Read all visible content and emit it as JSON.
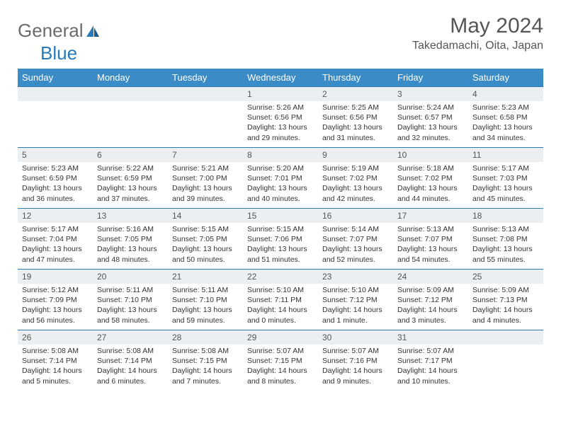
{
  "logo": {
    "text1": "General",
    "text2": "Blue"
  },
  "title": "May 2024",
  "location": "Takedamachi, Oita, Japan",
  "colors": {
    "header_bg": "#3b8bc6",
    "header_text": "#ffffff",
    "border": "#2a7ab8",
    "daynum_bg": "#eceff1",
    "body_text": "#333333",
    "title_text": "#555555",
    "logo_gray": "#6b6b6b",
    "logo_blue": "#2a7ab8"
  },
  "day_headers": [
    "Sunday",
    "Monday",
    "Tuesday",
    "Wednesday",
    "Thursday",
    "Friday",
    "Saturday"
  ],
  "weeks": [
    [
      {
        "n": "",
        "sunrise": "",
        "sunset": "",
        "daylight": ""
      },
      {
        "n": "",
        "sunrise": "",
        "sunset": "",
        "daylight": ""
      },
      {
        "n": "",
        "sunrise": "",
        "sunset": "",
        "daylight": ""
      },
      {
        "n": "1",
        "sunrise": "Sunrise: 5:26 AM",
        "sunset": "Sunset: 6:56 PM",
        "daylight": "Daylight: 13 hours and 29 minutes."
      },
      {
        "n": "2",
        "sunrise": "Sunrise: 5:25 AM",
        "sunset": "Sunset: 6:56 PM",
        "daylight": "Daylight: 13 hours and 31 minutes."
      },
      {
        "n": "3",
        "sunrise": "Sunrise: 5:24 AM",
        "sunset": "Sunset: 6:57 PM",
        "daylight": "Daylight: 13 hours and 32 minutes."
      },
      {
        "n": "4",
        "sunrise": "Sunrise: 5:23 AM",
        "sunset": "Sunset: 6:58 PM",
        "daylight": "Daylight: 13 hours and 34 minutes."
      }
    ],
    [
      {
        "n": "5",
        "sunrise": "Sunrise: 5:23 AM",
        "sunset": "Sunset: 6:59 PM",
        "daylight": "Daylight: 13 hours and 36 minutes."
      },
      {
        "n": "6",
        "sunrise": "Sunrise: 5:22 AM",
        "sunset": "Sunset: 6:59 PM",
        "daylight": "Daylight: 13 hours and 37 minutes."
      },
      {
        "n": "7",
        "sunrise": "Sunrise: 5:21 AM",
        "sunset": "Sunset: 7:00 PM",
        "daylight": "Daylight: 13 hours and 39 minutes."
      },
      {
        "n": "8",
        "sunrise": "Sunrise: 5:20 AM",
        "sunset": "Sunset: 7:01 PM",
        "daylight": "Daylight: 13 hours and 40 minutes."
      },
      {
        "n": "9",
        "sunrise": "Sunrise: 5:19 AM",
        "sunset": "Sunset: 7:02 PM",
        "daylight": "Daylight: 13 hours and 42 minutes."
      },
      {
        "n": "10",
        "sunrise": "Sunrise: 5:18 AM",
        "sunset": "Sunset: 7:02 PM",
        "daylight": "Daylight: 13 hours and 44 minutes."
      },
      {
        "n": "11",
        "sunrise": "Sunrise: 5:17 AM",
        "sunset": "Sunset: 7:03 PM",
        "daylight": "Daylight: 13 hours and 45 minutes."
      }
    ],
    [
      {
        "n": "12",
        "sunrise": "Sunrise: 5:17 AM",
        "sunset": "Sunset: 7:04 PM",
        "daylight": "Daylight: 13 hours and 47 minutes."
      },
      {
        "n": "13",
        "sunrise": "Sunrise: 5:16 AM",
        "sunset": "Sunset: 7:05 PM",
        "daylight": "Daylight: 13 hours and 48 minutes."
      },
      {
        "n": "14",
        "sunrise": "Sunrise: 5:15 AM",
        "sunset": "Sunset: 7:05 PM",
        "daylight": "Daylight: 13 hours and 50 minutes."
      },
      {
        "n": "15",
        "sunrise": "Sunrise: 5:15 AM",
        "sunset": "Sunset: 7:06 PM",
        "daylight": "Daylight: 13 hours and 51 minutes."
      },
      {
        "n": "16",
        "sunrise": "Sunrise: 5:14 AM",
        "sunset": "Sunset: 7:07 PM",
        "daylight": "Daylight: 13 hours and 52 minutes."
      },
      {
        "n": "17",
        "sunrise": "Sunrise: 5:13 AM",
        "sunset": "Sunset: 7:07 PM",
        "daylight": "Daylight: 13 hours and 54 minutes."
      },
      {
        "n": "18",
        "sunrise": "Sunrise: 5:13 AM",
        "sunset": "Sunset: 7:08 PM",
        "daylight": "Daylight: 13 hours and 55 minutes."
      }
    ],
    [
      {
        "n": "19",
        "sunrise": "Sunrise: 5:12 AM",
        "sunset": "Sunset: 7:09 PM",
        "daylight": "Daylight: 13 hours and 56 minutes."
      },
      {
        "n": "20",
        "sunrise": "Sunrise: 5:11 AM",
        "sunset": "Sunset: 7:10 PM",
        "daylight": "Daylight: 13 hours and 58 minutes."
      },
      {
        "n": "21",
        "sunrise": "Sunrise: 5:11 AM",
        "sunset": "Sunset: 7:10 PM",
        "daylight": "Daylight: 13 hours and 59 minutes."
      },
      {
        "n": "22",
        "sunrise": "Sunrise: 5:10 AM",
        "sunset": "Sunset: 7:11 PM",
        "daylight": "Daylight: 14 hours and 0 minutes."
      },
      {
        "n": "23",
        "sunrise": "Sunrise: 5:10 AM",
        "sunset": "Sunset: 7:12 PM",
        "daylight": "Daylight: 14 hours and 1 minute."
      },
      {
        "n": "24",
        "sunrise": "Sunrise: 5:09 AM",
        "sunset": "Sunset: 7:12 PM",
        "daylight": "Daylight: 14 hours and 3 minutes."
      },
      {
        "n": "25",
        "sunrise": "Sunrise: 5:09 AM",
        "sunset": "Sunset: 7:13 PM",
        "daylight": "Daylight: 14 hours and 4 minutes."
      }
    ],
    [
      {
        "n": "26",
        "sunrise": "Sunrise: 5:08 AM",
        "sunset": "Sunset: 7:14 PM",
        "daylight": "Daylight: 14 hours and 5 minutes."
      },
      {
        "n": "27",
        "sunrise": "Sunrise: 5:08 AM",
        "sunset": "Sunset: 7:14 PM",
        "daylight": "Daylight: 14 hours and 6 minutes."
      },
      {
        "n": "28",
        "sunrise": "Sunrise: 5:08 AM",
        "sunset": "Sunset: 7:15 PM",
        "daylight": "Daylight: 14 hours and 7 minutes."
      },
      {
        "n": "29",
        "sunrise": "Sunrise: 5:07 AM",
        "sunset": "Sunset: 7:15 PM",
        "daylight": "Daylight: 14 hours and 8 minutes."
      },
      {
        "n": "30",
        "sunrise": "Sunrise: 5:07 AM",
        "sunset": "Sunset: 7:16 PM",
        "daylight": "Daylight: 14 hours and 9 minutes."
      },
      {
        "n": "31",
        "sunrise": "Sunrise: 5:07 AM",
        "sunset": "Sunset: 7:17 PM",
        "daylight": "Daylight: 14 hours and 10 minutes."
      },
      {
        "n": "",
        "sunrise": "",
        "sunset": "",
        "daylight": ""
      }
    ]
  ]
}
